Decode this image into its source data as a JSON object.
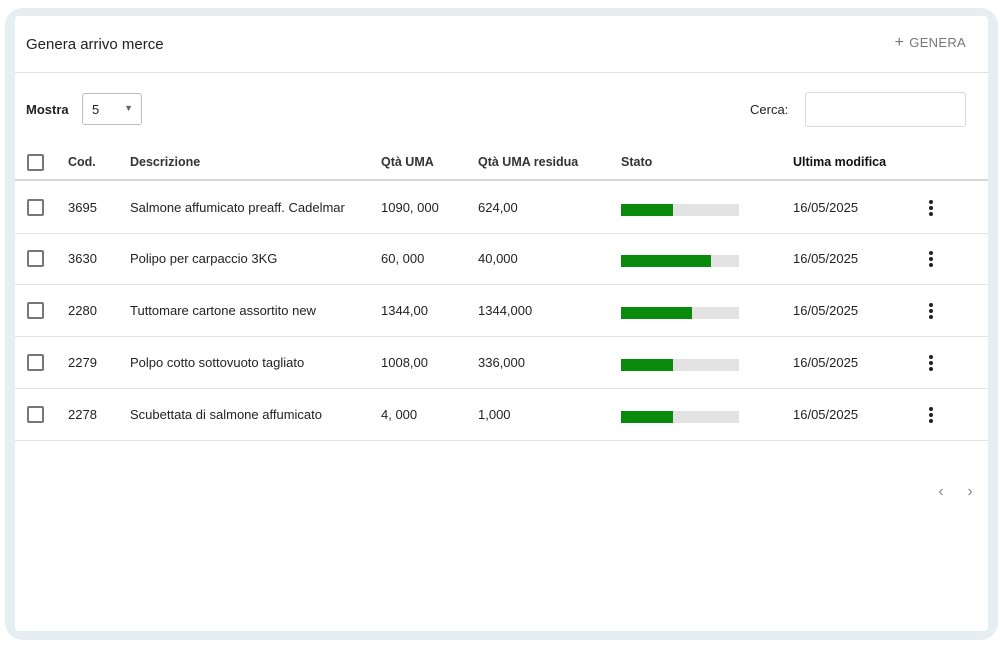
{
  "header": {
    "title": "Genera arrivo merce",
    "generate_icon": "plus-icon",
    "generate_label": "GENERA"
  },
  "controls": {
    "show_label": "Mostra",
    "show_value": "5",
    "search_label": "Cerca:",
    "search_value": ""
  },
  "table": {
    "columns": {
      "code": "Cod.",
      "description": "Descrizione",
      "qty": "Qtà UMA",
      "qty_residual": "Qtà UMA residua",
      "status": "Stato",
      "last_modified": "Ultima modifica"
    },
    "status_color": "#0a8a0a",
    "rows": [
      {
        "code": "3695",
        "description": "Salmone affumicato preaff. Cadelmar",
        "qty": "1090, 000",
        "qty_residual": "624,00",
        "status_progress": 0.44,
        "last_modified": "16/05/2025"
      },
      {
        "code": "3630",
        "description": "Polipo per carpaccio 3KG",
        "qty": "60, 000",
        "qty_residual": "40,000",
        "status_progress": 0.76,
        "last_modified": "16/05/2025"
      },
      {
        "code": "2280",
        "description": "Tuttomare cartone assortito new",
        "qty": "1344,00",
        "qty_residual": "1344,000",
        "status_progress": 0.6,
        "last_modified": "16/05/2025"
      },
      {
        "code": "2279",
        "description": "Polpo cotto sottovuoto tagliato",
        "qty": "1008,00",
        "qty_residual": "336,000",
        "status_progress": 0.44,
        "last_modified": "16/05/2025"
      },
      {
        "code": "2278",
        "description": "Scubettata di salmone affumicato",
        "qty": "4, 000",
        "qty_residual": "1,000",
        "status_progress": 0.44,
        "last_modified": "16/05/2025"
      }
    ]
  },
  "pagination": {
    "prev_icon": "chevron-left-icon",
    "next_icon": "chevron-right-icon"
  }
}
